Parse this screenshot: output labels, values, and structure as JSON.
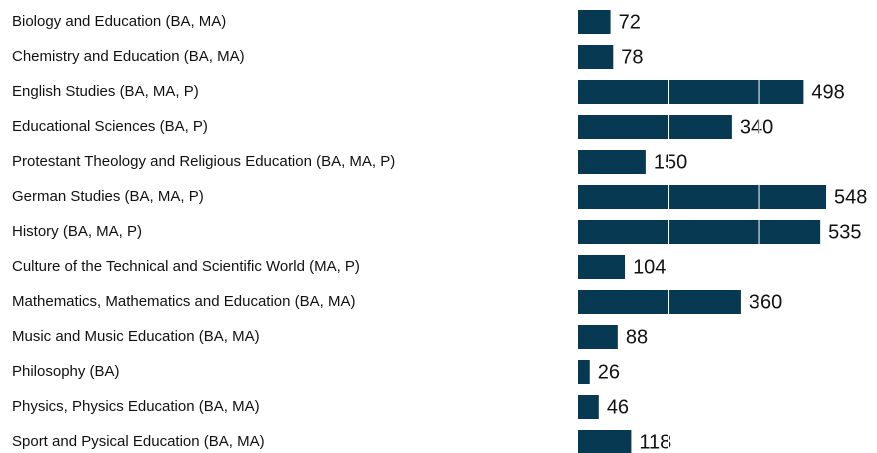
{
  "chart_data": {
    "type": "bar",
    "orientation": "horizontal",
    "categories": [
      "Biology and Education (BA, MA)",
      "Chemistry and Education (BA, MA)",
      "English Studies (BA, MA, P)",
      "Educational Sciences (BA, P)",
      "Protestant Theology and Religious Education (BA, MA, P)",
      "German Studies (BA, MA, P)",
      "History (BA, MA, P)",
      "Culture of the Technical and Scientific World (MA, P)",
      "Mathematics, Mathematics and Education (BA, MA)",
      "Music and Music Education (BA, MA)",
      "Philosophy (BA)",
      "Physics, Physics Education (BA, MA)",
      "Sport and Pysical Education (BA, MA)"
    ],
    "values": [
      72,
      78,
      498,
      340,
      150,
      548,
      535,
      104,
      360,
      88,
      26,
      46,
      118
    ],
    "color": "#073a52",
    "grid_color": "#ffffff",
    "xlim": [
      0,
      600
    ],
    "xticks": [
      200,
      400
    ],
    "tick_labels": false,
    "grid": true
  }
}
